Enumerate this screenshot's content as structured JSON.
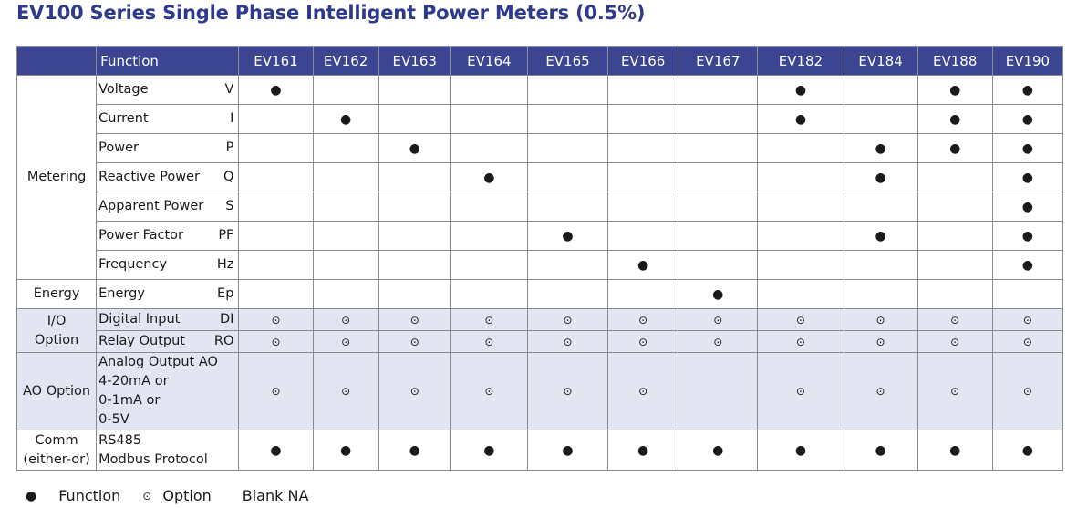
{
  "title": "EV100 Series Single Phase Intelligent Power Meters (0.5%)",
  "header": {
    "function_label": "Function",
    "models": [
      "EV161",
      "EV162",
      "EV163",
      "EV164",
      "EV165",
      "EV166",
      "EV167",
      "EV182",
      "EV184",
      "EV188",
      "EV190"
    ]
  },
  "symbols": {
    "function": "●",
    "option": "⊙"
  },
  "categories": {
    "metering": "Metering",
    "energy": "Energy",
    "io_line1": "I/O",
    "io_line2": "Option",
    "ao": "AO Option",
    "comm_line1": "Comm",
    "comm_line2": "(either-or)"
  },
  "rows": [
    {
      "name": "Voltage",
      "sym": "V",
      "cells": [
        "F",
        "",
        "",
        "",
        "",
        "",
        "",
        "F",
        "",
        "F",
        "F"
      ]
    },
    {
      "name": "Current",
      "sym": "I",
      "cells": [
        "",
        "F",
        "",
        "",
        "",
        "",
        "",
        "F",
        "",
        "F",
        "F"
      ]
    },
    {
      "name": "Power",
      "sym": "P",
      "cells": [
        "",
        "",
        "F",
        "",
        "",
        "",
        "",
        "",
        "F",
        "F",
        "F"
      ]
    },
    {
      "name": "Reactive Power",
      "sym": "Q",
      "cells": [
        "",
        "",
        "",
        "F",
        "",
        "",
        "",
        "",
        "F",
        "",
        "F"
      ]
    },
    {
      "name": "Apparent Power",
      "sym": "S",
      "cells": [
        "",
        "",
        "",
        "",
        "",
        "",
        "",
        "",
        "",
        "",
        "F"
      ]
    },
    {
      "name": "Power Factor",
      "sym": "PF",
      "cells": [
        "",
        "",
        "",
        "",
        "F",
        "",
        "",
        "",
        "F",
        "",
        "F"
      ]
    },
    {
      "name": "Frequency",
      "sym": "Hz",
      "cells": [
        "",
        "",
        "",
        "",
        "",
        "F",
        "",
        "",
        "",
        "",
        "F"
      ]
    },
    {
      "name": "Energy",
      "sym": "Ep",
      "cells": [
        "",
        "",
        "",
        "",
        "",
        "",
        "F",
        "",
        "",
        "",
        ""
      ]
    },
    {
      "name": "Digital Input",
      "sym": "DI",
      "cells": [
        "O",
        "O",
        "O",
        "O",
        "O",
        "O",
        "O",
        "O",
        "O",
        "O",
        "O"
      ]
    },
    {
      "name": "Relay Output",
      "sym": "RO",
      "cells": [
        "O",
        "O",
        "O",
        "O",
        "O",
        "O",
        "O",
        "O",
        "O",
        "O",
        "O"
      ]
    },
    {
      "lines": [
        "Analog Output AO",
        "4-20mA or",
        "0-1mA or",
        "0-5V"
      ],
      "cells": [
        "O",
        "O",
        "O",
        "O",
        "O",
        "O",
        "",
        "O",
        "O",
        "O",
        "O"
      ]
    },
    {
      "lines": [
        "RS485",
        "Modbus Protocol"
      ],
      "cells": [
        "F",
        "F",
        "F",
        "F",
        "F",
        "F",
        "F",
        "F",
        "F",
        "F",
        "F"
      ]
    }
  ],
  "legend": {
    "function": "Function",
    "option": "Option",
    "blank": "Blank NA"
  }
}
